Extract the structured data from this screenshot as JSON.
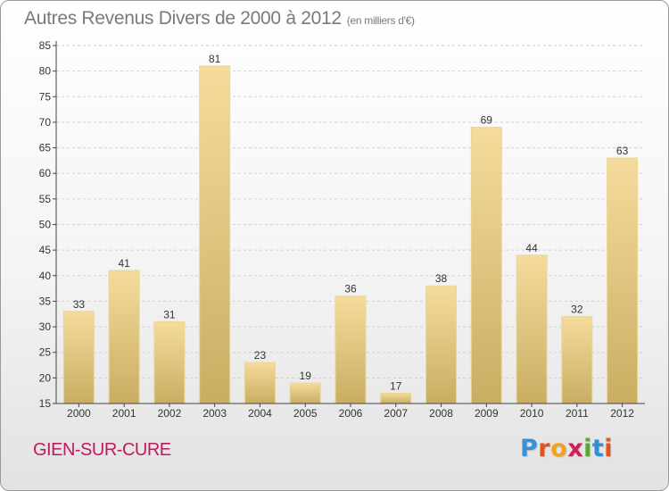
{
  "header": {
    "title": "Autres Revenus Divers de 2000 à 2012",
    "unit": "(en milliers d'€)"
  },
  "footer": {
    "commune": "GIEN-SUR-CURE",
    "logo_letters": [
      {
        "char": "P",
        "color": "#3a8fd6"
      },
      {
        "char": "r",
        "color": "#e8501a"
      },
      {
        "char": "o",
        "color": "#f3a21d"
      },
      {
        "char": "x",
        "color": "#cc1f5c"
      },
      {
        "char": "i",
        "color": "#5aa631"
      },
      {
        "char": "t",
        "color": "#2d8fd4"
      },
      {
        "char": "i",
        "color": "#e8501a"
      }
    ]
  },
  "chart_data": {
    "type": "bar",
    "title": "Autres Revenus Divers de 2000 à 2012",
    "subtitle": "(en milliers d'€)",
    "categories": [
      "2000",
      "2001",
      "2002",
      "2003",
      "2004",
      "2005",
      "2006",
      "2007",
      "2008",
      "2009",
      "2010",
      "2011",
      "2012"
    ],
    "values": [
      33,
      41,
      31,
      81,
      23,
      19,
      36,
      17,
      38,
      69,
      44,
      32,
      63
    ],
    "ylim": [
      15,
      85
    ],
    "yticks": [
      15,
      20,
      25,
      30,
      35,
      40,
      45,
      50,
      55,
      60,
      65,
      70,
      75,
      80,
      85
    ],
    "grid": "horizontal",
    "colors": {
      "bar_light": "#f5dc9c",
      "bar_dark": "#c9ad62",
      "grid": "#d0d0d0",
      "axis": "#444444",
      "label": "#333333"
    }
  }
}
